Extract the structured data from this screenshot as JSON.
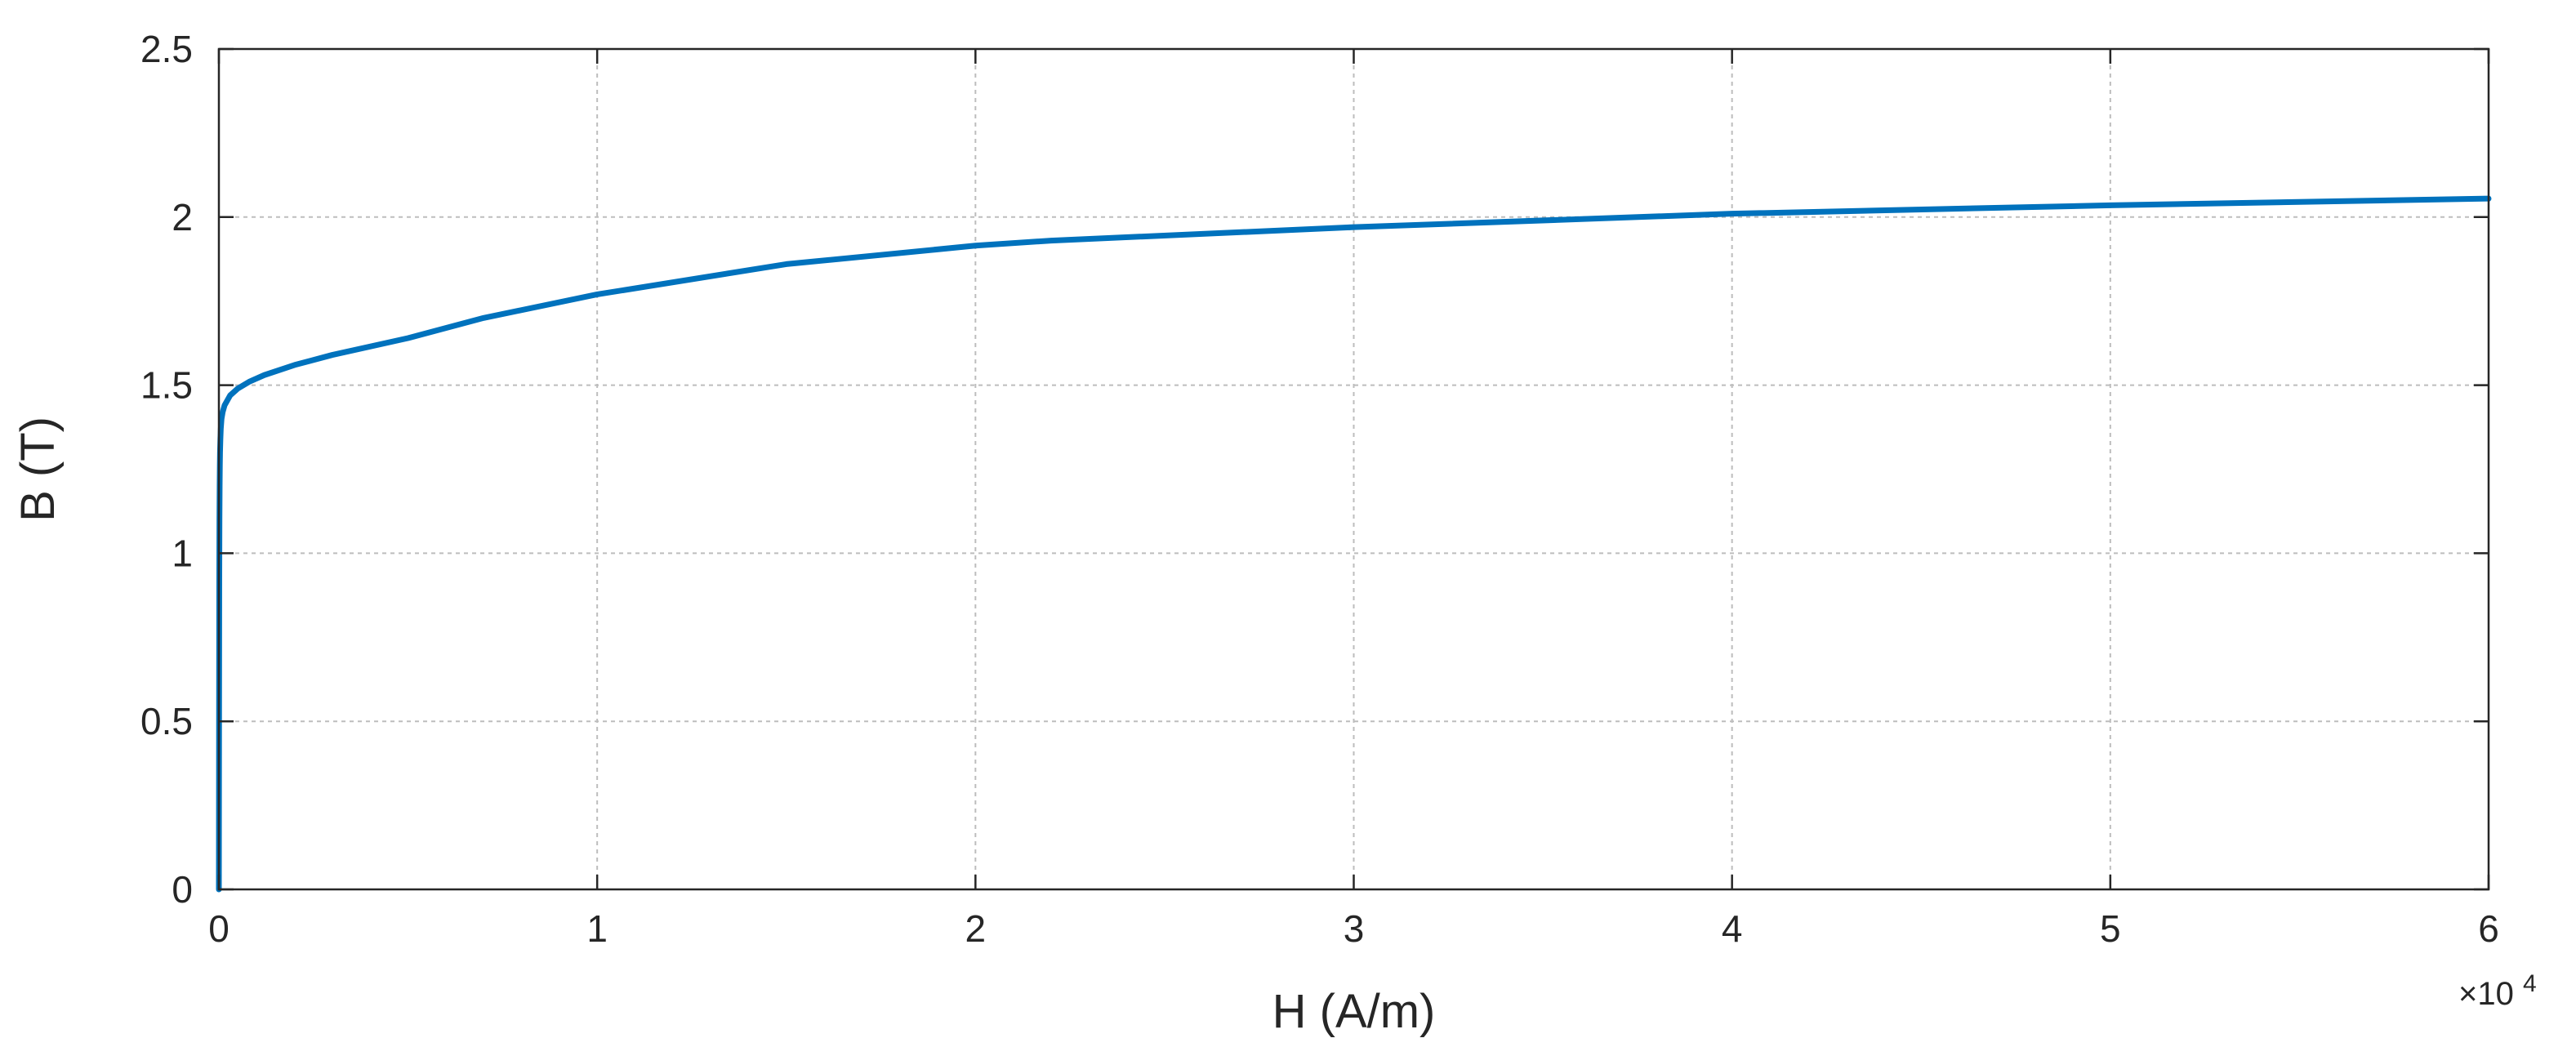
{
  "chart_data": {
    "type": "line",
    "title": "",
    "xlabel": "H (A/m)",
    "ylabel": "B (T)",
    "x_exponent": {
      "prefix": "×10",
      "power": "4"
    },
    "xlim": [
      0,
      6
    ],
    "ylim": [
      0,
      2.5
    ],
    "x_ticks": [
      0,
      1,
      2,
      3,
      4,
      5,
      6
    ],
    "x_tick_labels": [
      "0",
      "1",
      "2",
      "3",
      "4",
      "5",
      "6"
    ],
    "y_ticks": [
      0,
      0.5,
      1,
      1.5,
      2,
      2.5
    ],
    "y_tick_labels": [
      "0",
      "0.5",
      "1",
      "1.5",
      "2",
      "2.5"
    ],
    "grid": true,
    "series": [
      {
        "color": "#0072BD",
        "x": [
          0,
          0.0005,
          0.001,
          0.0015,
          0.002,
          0.0025,
          0.003,
          0.004,
          0.005,
          0.007,
          0.01,
          0.015,
          0.02,
          0.03,
          0.05,
          0.08,
          0.12,
          0.2,
          0.3,
          0.5,
          0.7,
          1.0,
          1.5,
          2.0,
          2.2,
          3.0,
          4.0,
          5.0,
          6.0
        ],
        "y": [
          0,
          0.5,
          0.9,
          1.1,
          1.2,
          1.26,
          1.3,
          1.34,
          1.37,
          1.4,
          1.42,
          1.44,
          1.45,
          1.47,
          1.49,
          1.51,
          1.53,
          1.56,
          1.59,
          1.64,
          1.7,
          1.77,
          1.86,
          1.915,
          1.93,
          1.97,
          2.01,
          2.035,
          2.055
        ]
      }
    ]
  }
}
